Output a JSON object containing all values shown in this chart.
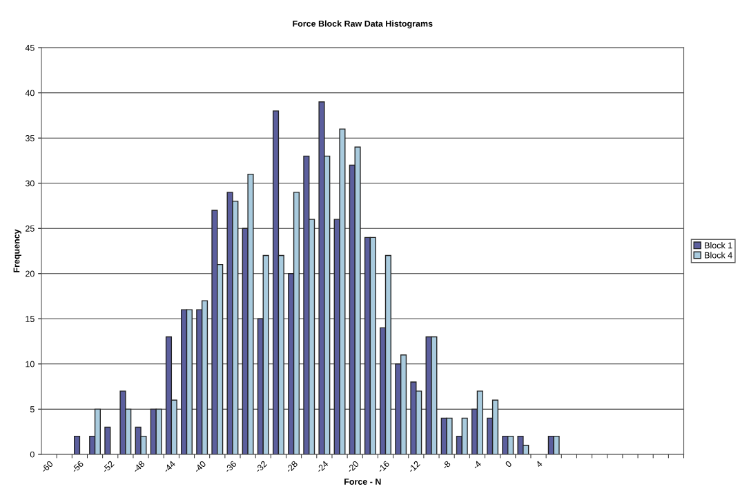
{
  "chart_data": {
    "type": "bar",
    "title": "Force Block Raw Data Histograms",
    "xlabel": "Force - N",
    "ylabel": "Frequency",
    "categories": [
      "-60",
      null,
      "-56",
      null,
      "-52",
      null,
      "-48",
      null,
      "-44",
      null,
      "-40",
      null,
      "-36",
      null,
      "-32",
      null,
      "-28",
      null,
      "-24",
      null,
      "-20",
      null,
      "-16",
      null,
      "-12",
      null,
      "-8",
      null,
      "-4",
      null,
      "0",
      null,
      "4",
      null,
      null,
      null,
      null,
      null,
      null,
      null,
      null,
      null
    ],
    "series": [
      {
        "name": "Block 1",
        "color": "#5c5f9e",
        "values": [
          0,
          0,
          2,
          2,
          3,
          7,
          3,
          5,
          13,
          16,
          16,
          27,
          29,
          25,
          15,
          38,
          20,
          33,
          39,
          26,
          32,
          24,
          14,
          10,
          8,
          13,
          4,
          2,
          5,
          4,
          2,
          2,
          0,
          2,
          0,
          0,
          0,
          0,
          0,
          0,
          0,
          0
        ]
      },
      {
        "name": "Block 4",
        "color": "#a9cbde",
        "values": [
          0,
          0,
          0,
          5,
          0,
          5,
          2,
          5,
          6,
          16,
          17,
          21,
          28,
          31,
          22,
          22,
          29,
          26,
          33,
          36,
          34,
          24,
          22,
          11,
          7,
          13,
          4,
          4,
          7,
          6,
          2,
          1,
          0,
          2,
          0,
          0,
          0,
          0,
          0,
          0,
          0,
          0
        ]
      }
    ],
    "ylim": [
      0,
      45
    ],
    "yticks": [
      0,
      5,
      10,
      15,
      20,
      25,
      30,
      35,
      40,
      45
    ],
    "grid": "y",
    "legend": "right"
  }
}
